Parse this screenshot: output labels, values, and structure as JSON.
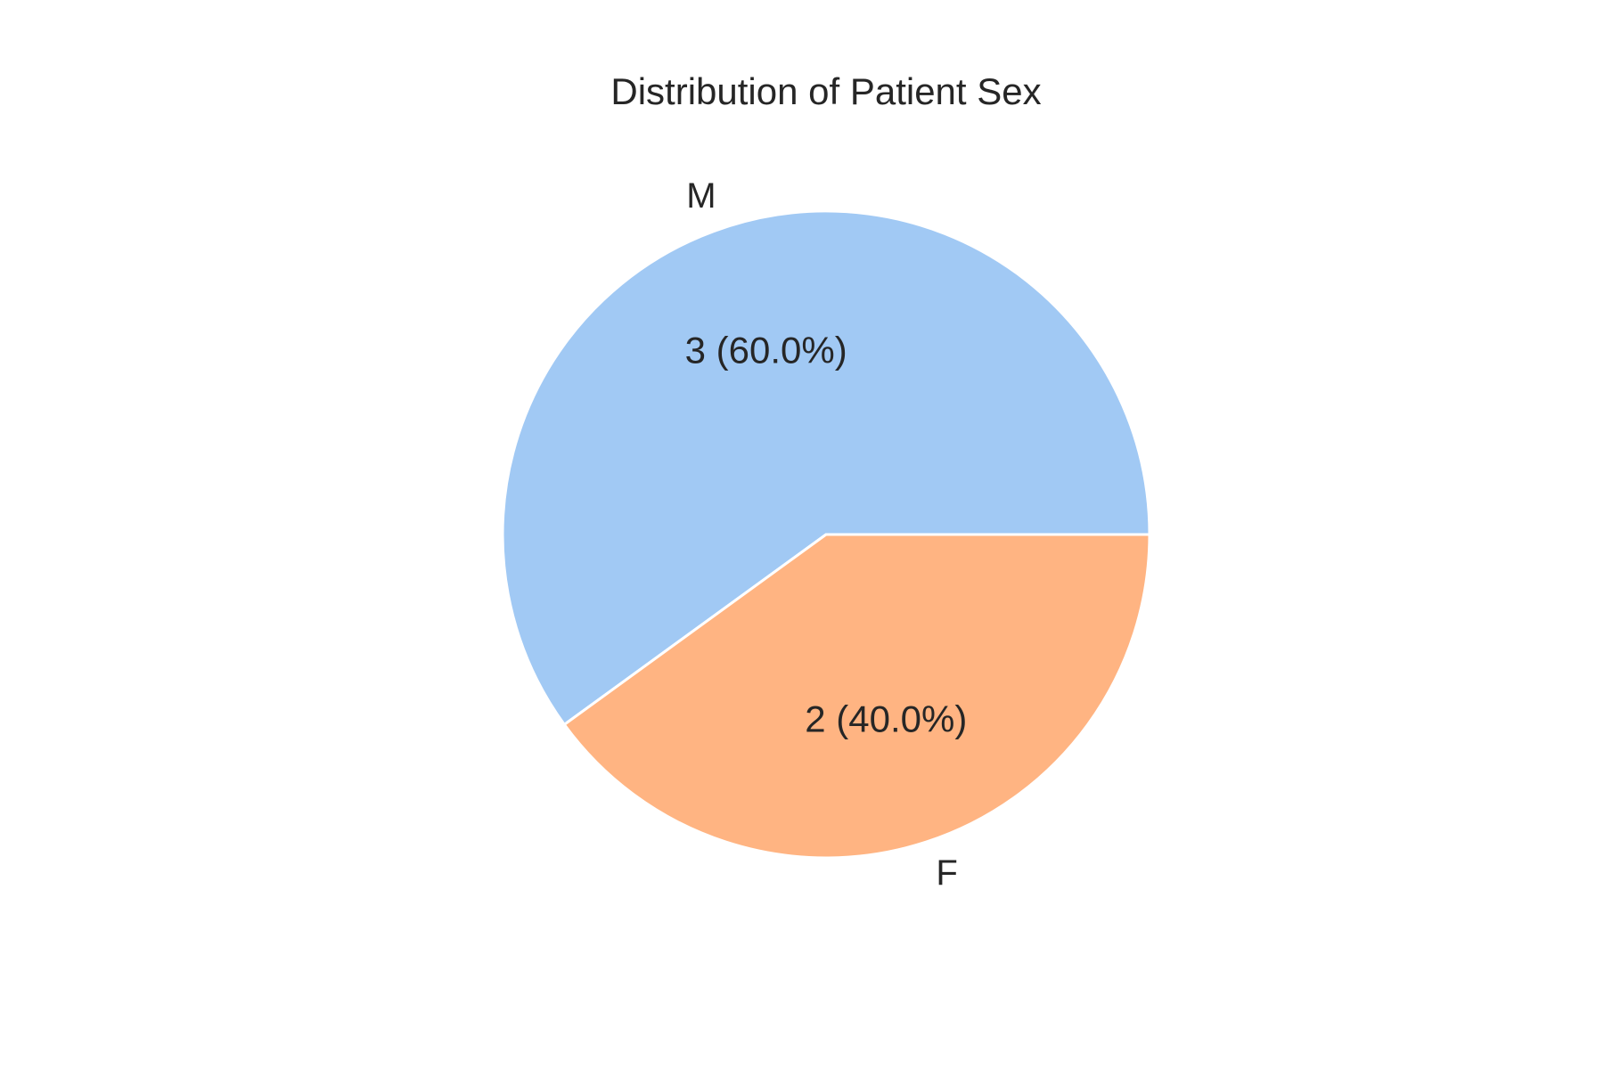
{
  "chart_data": {
    "type": "pie",
    "title": "Distribution of Patient Sex",
    "categories": [
      "M",
      "F"
    ],
    "values": [
      3,
      2
    ],
    "autopct_labels": [
      "3 (60.0%)",
      "2 (40.0%)"
    ],
    "colors": [
      "#a1c9f4",
      "#ffb482"
    ],
    "edge_color": "#ffffff",
    "start_angle_deg": 0,
    "direction": "counterclockwise"
  }
}
